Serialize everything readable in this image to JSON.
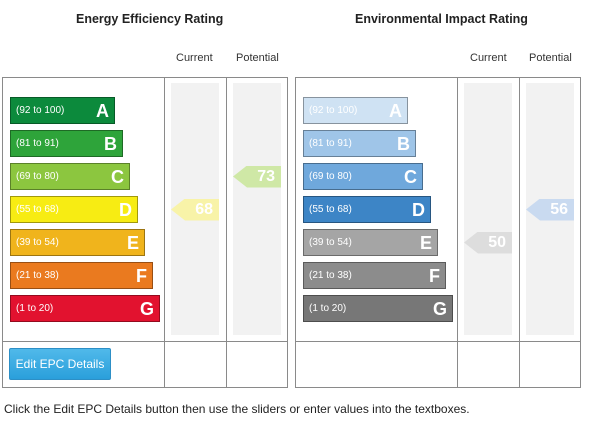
{
  "energy": {
    "title": "Energy Efficiency Rating",
    "current_label": "Current",
    "potential_label": "Potential",
    "bands": [
      {
        "range": "(92 to 100)",
        "letter": "A",
        "color": "#0c8a3c"
      },
      {
        "range": "(81 to 91)",
        "letter": "B",
        "color": "#2ea43a"
      },
      {
        "range": "(69 to 80)",
        "letter": "C",
        "color": "#8cc63f"
      },
      {
        "range": "(55 to 68)",
        "letter": "D",
        "color": "#f7ec13"
      },
      {
        "range": "(39 to 54)",
        "letter": "E",
        "color": "#f0b41c"
      },
      {
        "range": "(21 to 38)",
        "letter": "F",
        "color": "#ea7a1f"
      },
      {
        "range": "(1 to 20)",
        "letter": "G",
        "color": "#e2122f"
      }
    ],
    "current": {
      "value": "68",
      "band": "D",
      "color": "#f8f3a8"
    },
    "potential": {
      "value": "73",
      "band": "C",
      "color": "#cfe8a6"
    }
  },
  "environmental": {
    "title": "Environmental Impact Rating",
    "current_label": "Current",
    "potential_label": "Potential",
    "bands": [
      {
        "range": "(92 to 100)",
        "letter": "A",
        "color": "#cfe2f3"
      },
      {
        "range": "(81 to 91)",
        "letter": "B",
        "color": "#9fc5e8"
      },
      {
        "range": "(69 to 80)",
        "letter": "C",
        "color": "#6fa8dc"
      },
      {
        "range": "(55 to 68)",
        "letter": "D",
        "color": "#3d85c6"
      },
      {
        "range": "(39 to 54)",
        "letter": "E",
        "color": "#a5a5a5"
      },
      {
        "range": "(21 to 38)",
        "letter": "F",
        "color": "#8c8c8c"
      },
      {
        "range": "(1 to 20)",
        "letter": "G",
        "color": "#777777"
      }
    ],
    "current": {
      "value": "50",
      "band": "E",
      "color": "#dddddd"
    },
    "potential": {
      "value": "56",
      "band": "D",
      "color": "#c9daf0"
    }
  },
  "edit_button_label": "Edit EPC Details",
  "instructions": "Click the Edit EPC Details button then use the sliders or enter values into the textboxes."
}
